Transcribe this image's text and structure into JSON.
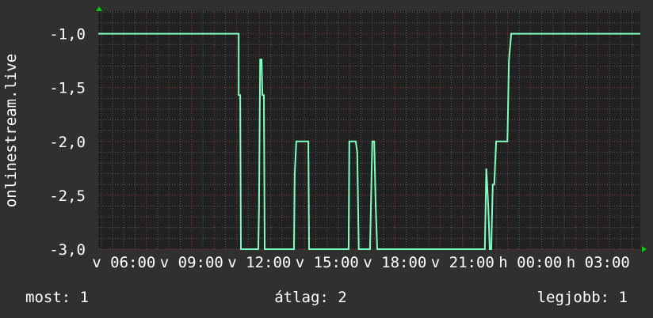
{
  "colors": {
    "background": "#303030",
    "plot_background": "#212121",
    "line": "#7fffbf",
    "minor_grid": "#5a5a5a",
    "major_grid": "#8a3a3a",
    "arrow": "#00cc00"
  },
  "chart_data": {
    "type": "line",
    "title": "",
    "ylabel": "onlinestream.live",
    "xlabel": "",
    "ylim": [
      -3.0,
      -0.79
    ],
    "xlim": [
      "04:52",
      "04:52 +1 day"
    ],
    "grid": true,
    "y_ticks": [
      {
        "value": -1.0,
        "label": "-1,0"
      },
      {
        "value": -1.5,
        "label": "-1,5"
      },
      {
        "value": -2.0,
        "label": "-2,0"
      },
      {
        "value": -2.5,
        "label": "-2,5"
      },
      {
        "value": -3.0,
        "label": "-3,0"
      }
    ],
    "x_ticks": [
      {
        "time": "06:00",
        "label": "v 06:00"
      },
      {
        "time": "09:00",
        "label": "v 09:00"
      },
      {
        "time": "12:00",
        "label": "v 12:00"
      },
      {
        "time": "15:00",
        "label": "v 15:00"
      },
      {
        "time": "18:00",
        "label": "v 18:00"
      },
      {
        "time": "21:00",
        "label": "v 21:00"
      },
      {
        "time": "00:00",
        "label": "h 00:00"
      },
      {
        "time": "03:00",
        "label": "h 03:00"
      }
    ],
    "series": [
      {
        "points": [
          [
            "04:52",
            -1.0
          ],
          [
            "11:05",
            -1.0
          ],
          [
            "11:05",
            -1.57
          ],
          [
            "11:09",
            -1.57
          ],
          [
            "11:11",
            -3.0
          ],
          [
            "11:57",
            -3.0
          ],
          [
            "11:59",
            -2.63
          ],
          [
            "12:02",
            -1.24
          ],
          [
            "12:06",
            -1.24
          ],
          [
            "12:08",
            -1.57
          ],
          [
            "12:12",
            -1.57
          ],
          [
            "12:14",
            -3.0
          ],
          [
            "13:32",
            -3.0
          ],
          [
            "13:34",
            -2.3
          ],
          [
            "13:38",
            -2.0
          ],
          [
            "14:10",
            -2.0
          ],
          [
            "14:12",
            -3.0
          ],
          [
            "15:57",
            -3.0
          ],
          [
            "15:59",
            -2.0
          ],
          [
            "16:16",
            -2.0
          ],
          [
            "16:20",
            -2.1
          ],
          [
            "16:24",
            -3.0
          ],
          [
            "16:54",
            -3.0
          ],
          [
            "17:00",
            -2.0
          ],
          [
            "17:05",
            -2.0
          ],
          [
            "17:09",
            -2.6
          ],
          [
            "17:13",
            -3.0
          ],
          [
            "21:59",
            -3.0
          ],
          [
            "22:03",
            -2.25
          ],
          [
            "22:08",
            -2.6
          ],
          [
            "22:12",
            -3.0
          ],
          [
            "22:16",
            -3.0
          ],
          [
            "22:20",
            -2.4
          ],
          [
            "22:24",
            -2.4
          ],
          [
            "22:29",
            -2.0
          ],
          [
            "22:59",
            -2.0
          ],
          [
            "23:03",
            -1.25
          ],
          [
            "23:09",
            -1.0
          ],
          [
            "04:52",
            -1.0
          ]
        ]
      }
    ]
  },
  "legend": {
    "current": "most: 1",
    "average": "átlag: 2",
    "max": "legjobb: 1"
  }
}
